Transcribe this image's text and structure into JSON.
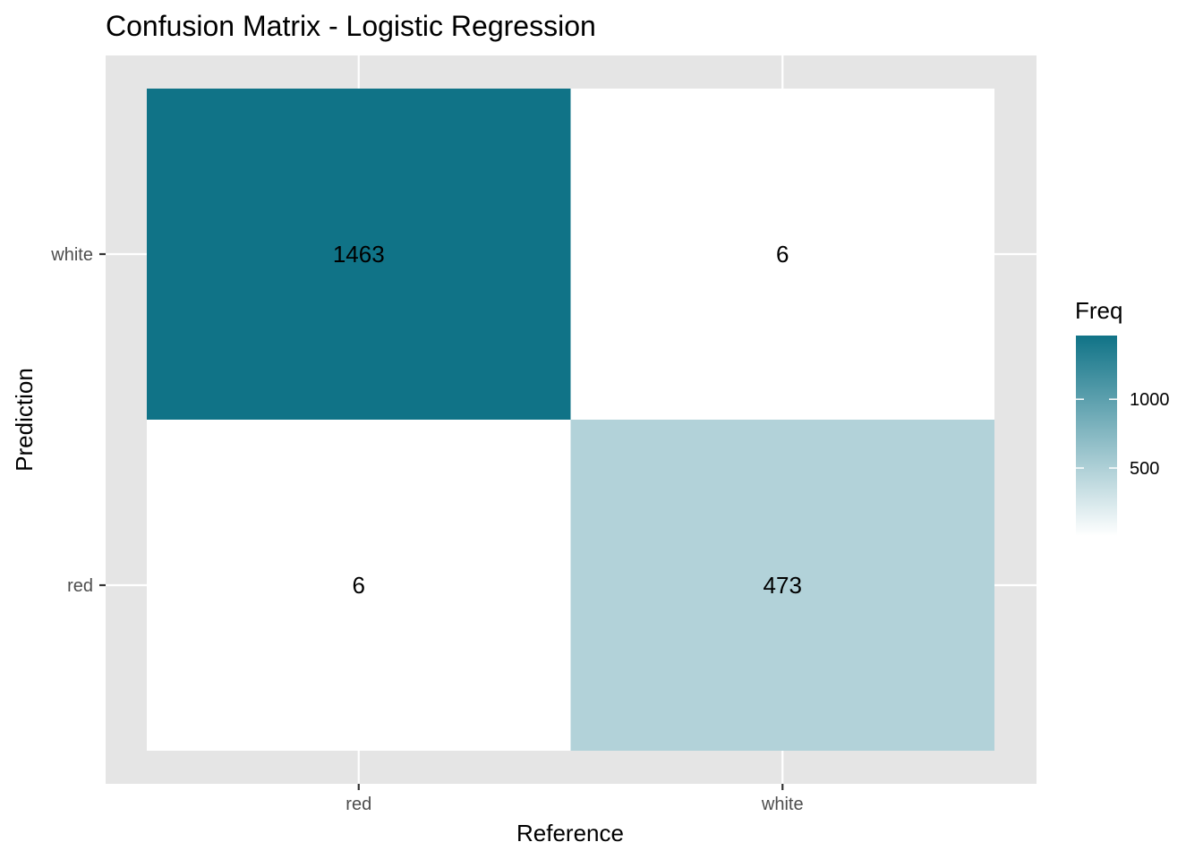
{
  "chart_data": {
    "type": "heatmap",
    "title": "Confusion Matrix - Logistic Regression",
    "xlabel": "Reference",
    "ylabel": "Prediction",
    "x_categories": [
      "red",
      "white"
    ],
    "y_categories": [
      "red",
      "white"
    ],
    "cells": [
      {
        "reference": "red",
        "prediction": "white",
        "freq": 1463
      },
      {
        "reference": "white",
        "prediction": "white",
        "freq": 6
      },
      {
        "reference": "red",
        "prediction": "red",
        "freq": 6
      },
      {
        "reference": "white",
        "prediction": "red",
        "freq": 473
      }
    ],
    "legend": {
      "title": "Freq",
      "ticks": [
        500,
        1000
      ],
      "range": [
        6,
        1463
      ],
      "low_color": "#ffffff",
      "high_color": "#107387",
      "placement": "right"
    },
    "grid": true,
    "panel_background": "#e5e5e5"
  }
}
